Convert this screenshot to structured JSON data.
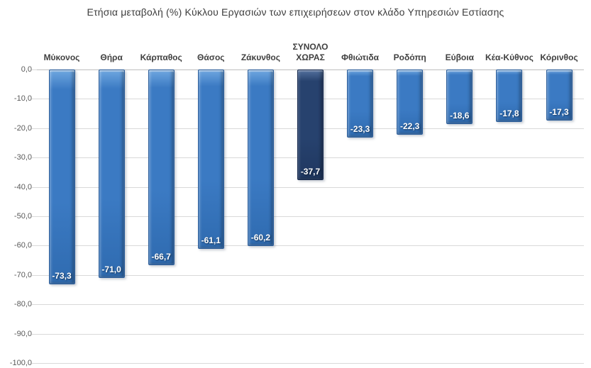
{
  "chart_data": {
    "type": "bar",
    "title": "Ετήσια μεταβολή (%) Κύκλου Εργασιών των επιχειρήσεων στον κλάδο Υπηρεσιών Εστίασης",
    "categories": [
      "Μύκονος",
      "Θήρα",
      "Κάρπαθος",
      "Θάσος",
      "Ζάκυνθος",
      "ΣΥΝΟΛΟ ΧΩΡΑΣ",
      "Φθιώτιδα",
      "Ροδόπη",
      "Εύβοια",
      "Κέα-Κύθνος",
      "Κόρινθος"
    ],
    "values": [
      -73.3,
      -71.0,
      -66.7,
      -61.1,
      -60.2,
      -37.7,
      -23.3,
      -22.3,
      -18.6,
      -17.8,
      -17.3
    ],
    "value_labels": [
      "-73,3",
      "-71,0",
      "-66,7",
      "-61,1",
      "-60,2",
      "-37,7",
      "-23,3",
      "-22,3",
      "-18,6",
      "-17,8",
      "-17,3"
    ],
    "highlight_index": 5,
    "highlight_category": "ΣΥΝΟΛΟ ΧΩΡΑΣ",
    "xlabel": "",
    "ylabel": "",
    "ylim": [
      0,
      -100
    ],
    "y_tick_labels": [
      "0,0",
      "-10,0",
      "-20,0",
      "-30,0",
      "-40,0",
      "-50,0",
      "-60,0",
      "-70,0",
      "-80,0",
      "-90,0",
      "-100,0"
    ],
    "y_tick_values": [
      0,
      -10,
      -20,
      -30,
      -40,
      -50,
      -60,
      -70,
      -80,
      -90,
      -100
    ],
    "grid": true,
    "legend": false,
    "category_label_position": "above-zero-line",
    "value_label_position": "inside-end",
    "colors": {
      "background": "#ffffff",
      "bar_fill": "#3b7ac3",
      "bar_fill_light": "#6fa7e0",
      "bar_fill_dark": "#2f6bb0",
      "bar_border": "#2a5c99",
      "total_bar_fill": "#27426e",
      "total_bar_fill_light": "#54719e",
      "total_bar_fill_dark": "#1f3760",
      "total_bar_border": "#17294d",
      "gridline": "#d9d9d9",
      "zero_line": "#bfbfbf",
      "title_text": "#3d3d3d",
      "axis_text": "#595959",
      "category_text": "#404040",
      "value_text": "#ffffff"
    }
  }
}
